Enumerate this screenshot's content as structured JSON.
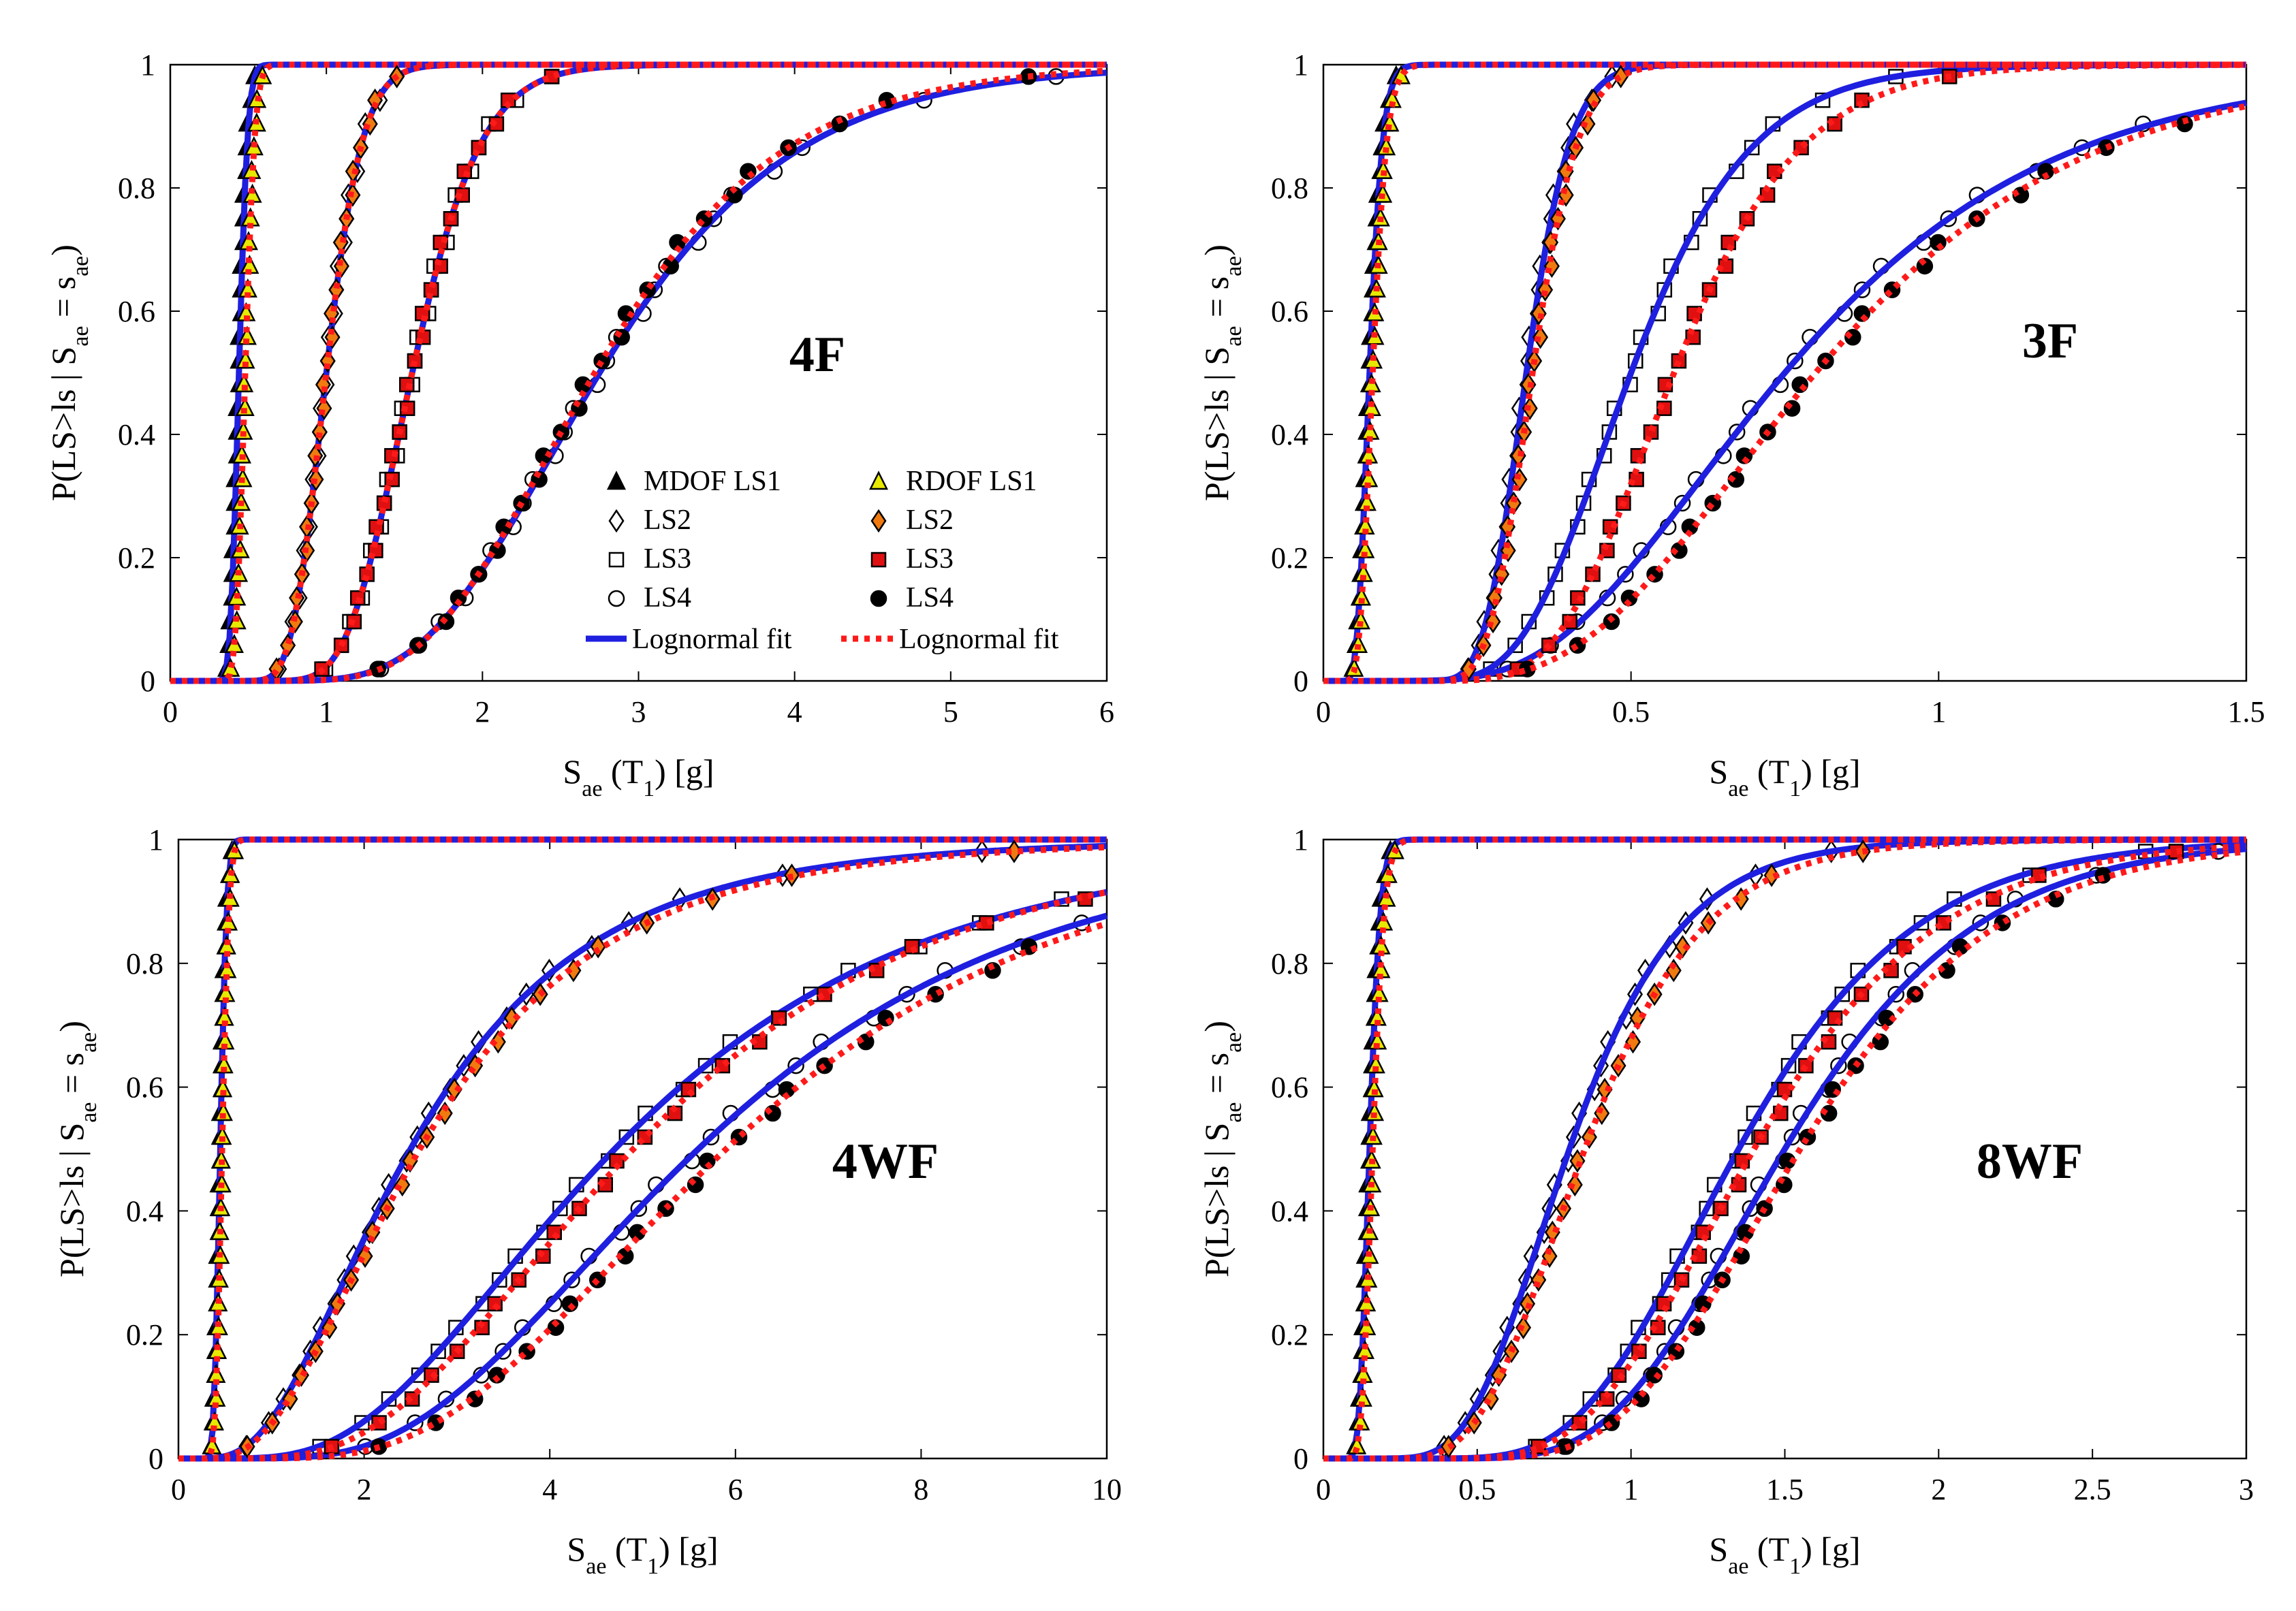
{
  "figure": {
    "colors": {
      "mdof_fit": "#1f1fe0",
      "rdof_fit": "#ff1a1a",
      "rdof_ls1": "#e8e800",
      "rdof_ls2": "#f07a10",
      "rdof_ls3": "#e01010",
      "ls4_fill": "#000000"
    },
    "legend": {
      "mdof_ls1": "MDOF LS1",
      "mdof_ls2": "LS2",
      "mdof_ls3": "LS3",
      "mdof_ls4": "LS4",
      "mdof_fit": "Lognormal fit",
      "rdof_ls1": "RDOF LS1",
      "rdof_ls2": "LS2",
      "rdof_ls3": "LS3",
      "rdof_ls4": "LS4",
      "rdof_fit": "Lognormal fit"
    }
  },
  "chart_data": [
    {
      "type": "line",
      "panel_label": "4F",
      "xlabel": "Sae (T1) [g]",
      "ylabel": "P(LS>ls | Sae = sae)",
      "xlim": [
        0,
        6
      ],
      "ylim": [
        0,
        1
      ],
      "xticks": [
        0,
        1,
        2,
        3,
        4,
        5,
        6
      ],
      "yticks": [
        0,
        0.2,
        0.4,
        0.6,
        0.8,
        1
      ],
      "fits": {
        "mdof": [
          {
            "limit_state": "LS1",
            "median": 0.44,
            "beta": 0.1
          },
          {
            "limit_state": "LS2",
            "median": 1.0,
            "beta": 0.18
          },
          {
            "limit_state": "LS3",
            "median": 1.55,
            "beta": 0.22
          },
          {
            "limit_state": "LS4",
            "median": 2.75,
            "beta": 0.35
          }
        ],
        "rdof": [
          {
            "limit_state": "LS1",
            "median": 0.48,
            "beta": 0.1
          },
          {
            "limit_state": "LS2",
            "median": 1.0,
            "beta": 0.18
          },
          {
            "limit_state": "LS3",
            "median": 1.55,
            "beta": 0.22
          },
          {
            "limit_state": "LS4",
            "median": 2.72,
            "beta": 0.34
          }
        ]
      }
    },
    {
      "type": "line",
      "panel_label": "3F",
      "xlabel": "Sae (T1) [g]",
      "ylabel": "P(LS>ls | Sae = sae)",
      "xlim": [
        0,
        1.5
      ],
      "ylim": [
        0,
        1
      ],
      "xticks": [
        0,
        0.5,
        1,
        1.5
      ],
      "yticks": [
        0,
        0.2,
        0.4,
        0.6,
        0.8,
        1
      ],
      "fits": {
        "mdof": [
          {
            "limit_state": "LS1",
            "median": 0.075,
            "beta": 0.22
          },
          {
            "limit_state": "LS2",
            "median": 0.33,
            "beta": 0.17
          },
          {
            "limit_state": "LS3",
            "median": 0.5,
            "beta": 0.3
          },
          {
            "limit_state": "LS4",
            "median": 0.75,
            "beta": 0.45
          }
        ],
        "rdof": [
          {
            "limit_state": "LS1",
            "median": 0.08,
            "beta": 0.22
          },
          {
            "limit_state": "LS2",
            "median": 0.34,
            "beta": 0.17
          },
          {
            "limit_state": "LS3",
            "median": 0.57,
            "beta": 0.28
          },
          {
            "limit_state": "LS4",
            "median": 0.8,
            "beta": 0.42
          }
        ]
      }
    },
    {
      "type": "line",
      "panel_label": "4WF",
      "xlabel": "Sae (T1) [g]",
      "ylabel": "P(LS>ls | Sae = sae)",
      "xlim": [
        0,
        10
      ],
      "ylim": [
        0,
        1
      ],
      "xticks": [
        0,
        2,
        4,
        6,
        8,
        10
      ],
      "yticks": [
        0,
        0.2,
        0.4,
        0.6,
        0.8,
        1
      ],
      "fits": {
        "mdof": [
          {
            "limit_state": "LS1",
            "median": 0.45,
            "beta": 0.12
          },
          {
            "limit_state": "LS2",
            "median": 2.5,
            "beta": 0.6
          },
          {
            "limit_state": "LS3",
            "median": 4.7,
            "beta": 0.55
          },
          {
            "limit_state": "LS4",
            "median": 5.6,
            "beta": 0.5
          }
        ],
        "rdof": [
          {
            "limit_state": "LS1",
            "median": 0.47,
            "beta": 0.12
          },
          {
            "limit_state": "LS2",
            "median": 2.6,
            "beta": 0.6
          },
          {
            "limit_state": "LS3",
            "median": 4.9,
            "beta": 0.52
          },
          {
            "limit_state": "LS4",
            "median": 5.9,
            "beta": 0.48
          }
        ]
      }
    },
    {
      "type": "line",
      "panel_label": "8WF",
      "xlabel": "Sae (T1) [g]",
      "ylabel": "P(LS>ls | Sae = sae)",
      "xlim": [
        0,
        3
      ],
      "ylim": [
        0,
        1
      ],
      "xticks": [
        0,
        0.5,
        1,
        1.5,
        2,
        2.5,
        3
      ],
      "yticks": [
        0,
        0.2,
        0.4,
        0.6,
        0.8,
        1
      ],
      "fits": {
        "mdof": [
          {
            "limit_state": "LS1",
            "median": 0.15,
            "beta": 0.18
          },
          {
            "limit_state": "LS2",
            "median": 0.8,
            "beta": 0.35
          },
          {
            "limit_state": "LS3",
            "median": 1.35,
            "beta": 0.33
          },
          {
            "limit_state": "LS4",
            "median": 1.5,
            "beta": 0.32
          }
        ],
        "rdof": [
          {
            "limit_state": "LS1",
            "median": 0.16,
            "beta": 0.18
          },
          {
            "limit_state": "LS2",
            "median": 0.85,
            "beta": 0.35
          },
          {
            "limit_state": "LS3",
            "median": 1.4,
            "beta": 0.33
          },
          {
            "limit_state": "LS4",
            "median": 1.55,
            "beta": 0.32
          }
        ]
      }
    }
  ]
}
